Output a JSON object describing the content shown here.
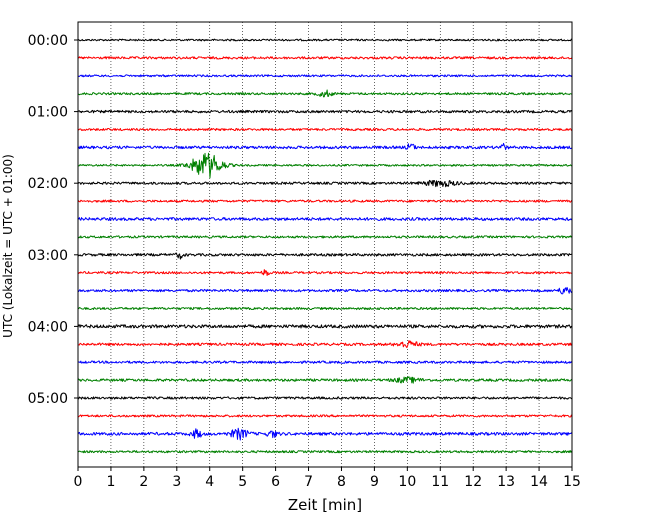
{
  "chart_data": {
    "type": "line",
    "title": "",
    "xlabel": "Zeit  [min]",
    "ylabel": "UTC (Lokalzeit = UTC + 01:00)",
    "xlim": [
      0,
      15
    ],
    "x_ticks": [
      0,
      1,
      2,
      3,
      4,
      5,
      6,
      7,
      8,
      9,
      10,
      11,
      12,
      13,
      14,
      15
    ],
    "y_tick_labels": [
      "00:00",
      "01:00",
      "02:00",
      "03:00",
      "04:00",
      "05:00"
    ],
    "grid": "vertical dotted at each minute",
    "line_interval_min": 15,
    "trace_color_cycle": [
      "#000000",
      "#ff0000",
      "#0000ff",
      "#008000"
    ],
    "traces": [
      {
        "start": "00:00",
        "color": "#000000",
        "amp": 0.1,
        "events": []
      },
      {
        "start": "00:15",
        "color": "#ff0000",
        "amp": 0.13,
        "events": []
      },
      {
        "start": "00:30",
        "color": "#0000ff",
        "amp": 0.11,
        "events": []
      },
      {
        "start": "00:45",
        "color": "#008000",
        "amp": 0.12,
        "events": [
          {
            "t": 7.5,
            "a": 0.35,
            "w": 0.2
          }
        ]
      },
      {
        "start": "01:00",
        "color": "#000000",
        "amp": 0.14,
        "events": []
      },
      {
        "start": "01:15",
        "color": "#ff0000",
        "amp": 0.12,
        "events": []
      },
      {
        "start": "01:30",
        "color": "#0000ff",
        "amp": 0.15,
        "events": [
          {
            "t": 10.1,
            "a": 0.5,
            "w": 0.1
          },
          {
            "t": 12.9,
            "a": 0.35,
            "w": 0.1
          }
        ]
      },
      {
        "start": "01:45",
        "color": "#008000",
        "amp": 0.1,
        "events": [
          {
            "t": 3.9,
            "a": 1.4,
            "w": 0.45
          }
        ]
      },
      {
        "start": "02:00",
        "color": "#000000",
        "amp": 0.13,
        "events": [
          {
            "t": 11.0,
            "a": 0.3,
            "w": 0.5
          }
        ]
      },
      {
        "start": "02:15",
        "color": "#ff0000",
        "amp": 0.12,
        "events": []
      },
      {
        "start": "02:30",
        "color": "#0000ff",
        "amp": 0.16,
        "events": []
      },
      {
        "start": "02:45",
        "color": "#008000",
        "amp": 0.12,
        "events": []
      },
      {
        "start": "03:00",
        "color": "#000000",
        "amp": 0.14,
        "events": [
          {
            "t": 3.1,
            "a": 0.35,
            "w": 0.1
          }
        ]
      },
      {
        "start": "03:15",
        "color": "#ff0000",
        "amp": 0.12,
        "events": [
          {
            "t": 5.7,
            "a": 0.35,
            "w": 0.1
          }
        ]
      },
      {
        "start": "03:30",
        "color": "#0000ff",
        "amp": 0.13,
        "events": [
          {
            "t": 14.8,
            "a": 0.4,
            "w": 0.2
          }
        ]
      },
      {
        "start": "03:45",
        "color": "#008000",
        "amp": 0.12,
        "events": []
      },
      {
        "start": "04:00",
        "color": "#000000",
        "amp": 0.18,
        "events": []
      },
      {
        "start": "04:15",
        "color": "#ff0000",
        "amp": 0.14,
        "events": [
          {
            "t": 10.0,
            "a": 0.35,
            "w": 0.3
          }
        ]
      },
      {
        "start": "04:30",
        "color": "#0000ff",
        "amp": 0.13,
        "events": []
      },
      {
        "start": "04:45",
        "color": "#008000",
        "amp": 0.14,
        "events": [
          {
            "t": 10.0,
            "a": 0.25,
            "w": 0.4
          }
        ]
      },
      {
        "start": "05:00",
        "color": "#000000",
        "amp": 0.13,
        "events": []
      },
      {
        "start": "05:15",
        "color": "#ff0000",
        "amp": 0.12,
        "events": []
      },
      {
        "start": "05:30",
        "color": "#0000ff",
        "amp": 0.16,
        "events": [
          {
            "t": 3.6,
            "a": 0.45,
            "w": 0.15
          },
          {
            "t": 4.9,
            "a": 0.55,
            "w": 0.25
          },
          {
            "t": 5.9,
            "a": 0.35,
            "w": 0.15
          }
        ]
      },
      {
        "start": "05:45",
        "color": "#008000",
        "amp": 0.12,
        "events": []
      }
    ]
  }
}
